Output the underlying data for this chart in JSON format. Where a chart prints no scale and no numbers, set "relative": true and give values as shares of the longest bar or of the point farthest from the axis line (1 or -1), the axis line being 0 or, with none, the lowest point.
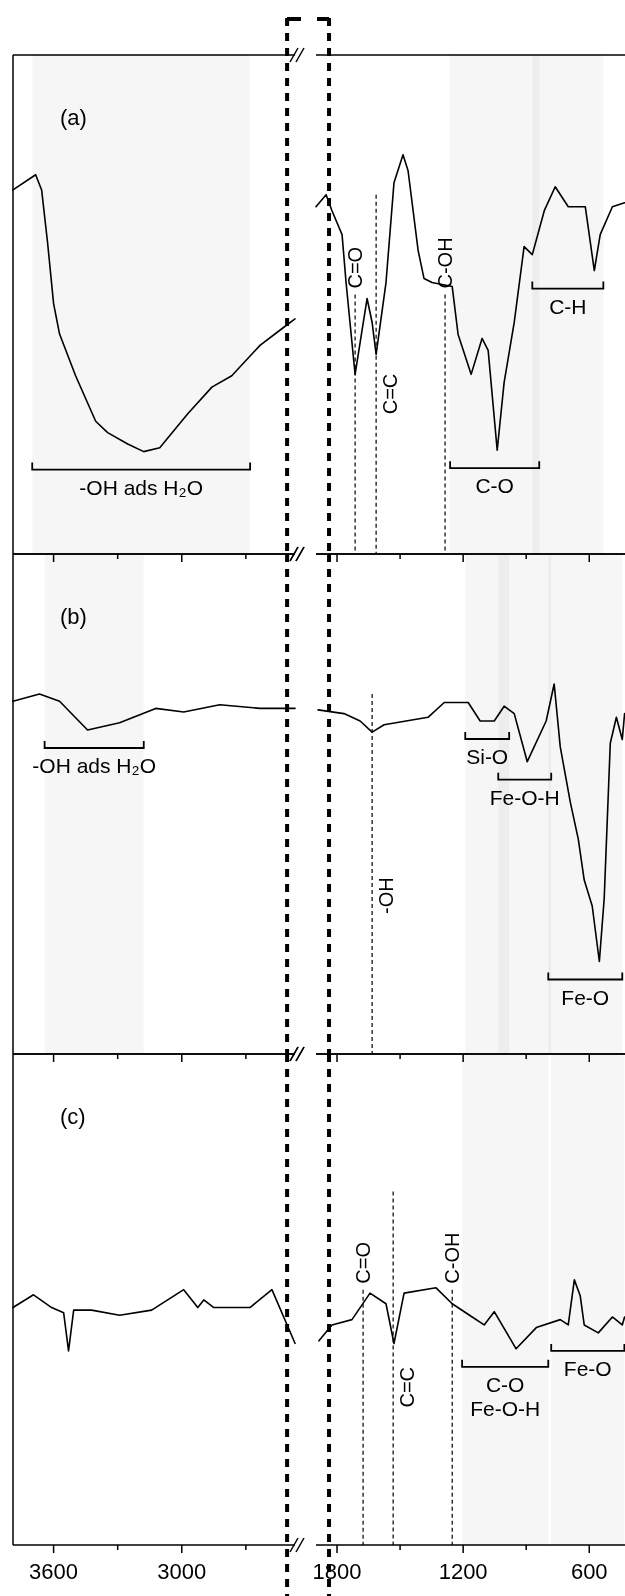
{
  "chart_data": [
    {
      "type": "line",
      "relative": true,
      "tick_labels": false,
      "annotations": [
        "(a)"
      ],
      "x": [
        3790,
        3684,
        3656,
        3628,
        3600,
        3572,
        3497,
        3403,
        3347,
        3253,
        3178,
        3103,
        2972,
        2859,
        2766,
        2634,
        2541,
        2470
      ],
      "series": [
        {
          "color": "#000000",
          "values": [
            0.96,
            1.0,
            0.96,
            0.82,
            0.66,
            0.58,
            0.47,
            0.35,
            0.32,
            0.29,
            0.27,
            0.28,
            0.37,
            0.44,
            0.47,
            0.55,
            0.59,
            0.62
          ]
        }
      ],
      "xlim": [
        3790,
        2470
      ],
      "xticks": [
        3600,
        {
          "value": 3300,
          "label": null
        },
        3000,
        {
          "value": 2700,
          "label": null
        }
      ],
      "ref_lines": [
        {
          "axis": "x",
          "value": 2507,
          "line_style": "dashed",
          "color": "#000000"
        }
      ],
      "bands": [
        {
          "axis": "x",
          "from": 3700,
          "to": 2680,
          "label": "-OH ads H₂O"
        }
      ]
    },
    {
      "type": "line",
      "relative": true,
      "tick_labels": false,
      "x": [
        1900,
        1852,
        1824,
        1776,
        1757,
        1714,
        1681,
        1657,
        1633,
        1614,
        1567,
        1529,
        1486,
        1462,
        1414,
        1386,
        1348,
        1252,
        1224,
        1162,
        1110,
        1081,
        1038,
        1005,
        957,
        910,
        871,
        814,
        762,
        700,
        619,
        576,
        548,
        490,
        432
      ],
      "series": [
        {
          "color": "#000000",
          "values": [
            0.87,
            0.9,
            0.86,
            0.8,
            0.68,
            0.45,
            0.56,
            0.64,
            0.58,
            0.5,
            0.68,
            0.93,
            1.0,
            0.96,
            0.76,
            0.69,
            0.68,
            0.67,
            0.55,
            0.45,
            0.54,
            0.51,
            0.26,
            0.43,
            0.58,
            0.77,
            0.75,
            0.86,
            0.92,
            0.87,
            0.87,
            0.71,
            0.8,
            0.87,
            0.88
          ]
        }
      ],
      "xlim": [
        1900,
        430
      ],
      "xticks": [
        1800,
        {
          "value": 1500,
          "label": null
        },
        1200,
        {
          "value": 900,
          "label": null
        },
        600
      ],
      "ref_lines": [
        {
          "axis": "x",
          "value": 1838,
          "line_style": "dashed",
          "color": "#000000"
        },
        {
          "axis": "x",
          "value": 1714,
          "label": "C=O",
          "line_style": "dashed"
        },
        {
          "axis": "x",
          "value": 1614,
          "label": "C=C",
          "line_style": "dashed"
        },
        {
          "axis": "x",
          "value": 1286,
          "label": "C-OH",
          "line_style": "dashed"
        }
      ],
      "bands": [
        {
          "axis": "x",
          "from": 1262,
          "to": 838,
          "label": "C-O"
        },
        {
          "axis": "x",
          "from": 871,
          "to": 533,
          "label": "C-H"
        }
      ]
    },
    {
      "type": "line",
      "relative": true,
      "tick_labels": false,
      "annotations": [
        "(b)"
      ],
      "x": [
        3790,
        3666,
        3572,
        3441,
        3291,
        3122,
        2991,
        2822,
        2634,
        2470
      ],
      "series": [
        {
          "color": "#000000",
          "values": [
            0.98,
            1.0,
            0.98,
            0.9,
            0.92,
            0.96,
            0.95,
            0.97,
            0.96,
            0.96
          ]
        }
      ],
      "xlim": [
        3790,
        2470
      ],
      "xticks": [
        3600,
        {
          "value": 3300,
          "label": null
        },
        3000,
        {
          "value": 2700,
          "label": null
        }
      ],
      "ref_lines": [
        {
          "axis": "x",
          "value": 2507,
          "line_style": "dashed",
          "color": "#000000"
        }
      ],
      "bands": [
        {
          "axis": "x",
          "from": 3642,
          "to": 3178,
          "label": "-OH ads H₂O"
        }
      ]
    },
    {
      "type": "line",
      "relative": true,
      "tick_labels": false,
      "x": [
        1890,
        1767,
        1690,
        1633,
        1576,
        1367,
        1290,
        1176,
        1119,
        1052,
        1005,
        957,
        895,
        805,
        767,
        738,
        690,
        652,
        624,
        586,
        552,
        529,
        500,
        471,
        443,
        432
      ],
      "series": [
        {
          "color": "#000000",
          "values": [
            0.93,
            0.92,
            0.9,
            0.87,
            0.89,
            0.91,
            0.95,
            0.95,
            0.9,
            0.9,
            0.94,
            0.92,
            0.79,
            0.9,
            1.0,
            0.83,
            0.68,
            0.58,
            0.47,
            0.4,
            0.25,
            0.42,
            0.84,
            0.91,
            0.85,
            0.92
          ]
        }
      ],
      "xlim": [
        1900,
        430
      ],
      "xticks": [
        1800,
        {
          "value": 1500,
          "label": null
        },
        1200,
        {
          "value": 900,
          "label": null
        },
        600
      ],
      "ref_lines": [
        {
          "axis": "x",
          "value": 1838,
          "line_style": "dashed",
          "color": "#000000"
        },
        {
          "axis": "x",
          "value": 1633,
          "label": "-OH",
          "line_style": "dashed"
        }
      ],
      "bands": [
        {
          "axis": "x",
          "from": 1190,
          "to": 981,
          "label": "Si-O"
        },
        {
          "axis": "x",
          "from": 1033,
          "to": 781,
          "label": "Fe-O-H"
        },
        {
          "axis": "x",
          "from": 795,
          "to": 443,
          "label": "Fe-O"
        }
      ]
    },
    {
      "type": "line",
      "relative": true,
      "tick_labels": "x",
      "annotations": [
        "(c)"
      ],
      "x": [
        3790,
        3694,
        3609,
        3553,
        3530,
        3506,
        3422,
        3291,
        3141,
        2991,
        2925,
        2897,
        2850,
        2681,
        2578,
        2470
      ],
      "series": [
        {
          "color": "#000000",
          "values": [
            0.93,
            0.98,
            0.93,
            0.91,
            0.76,
            0.92,
            0.92,
            0.9,
            0.92,
            1.0,
            0.93,
            0.96,
            0.93,
            0.93,
            1.0,
            0.79
          ]
        }
      ],
      "xlim": [
        3790,
        2470
      ],
      "xticks": [
        3600,
        {
          "value": 3300,
          "label": null
        },
        3000,
        {
          "value": 2700,
          "label": null
        }
      ],
      "ref_lines": [
        {
          "axis": "x",
          "value": 2507,
          "line_style": "dashed",
          "color": "#000000"
        }
      ]
    },
    {
      "type": "line",
      "relative": true,
      "tick_labels": "x",
      "x": [
        1886,
        1824,
        1729,
        1643,
        1567,
        1529,
        1481,
        1329,
        1252,
        1157,
        1100,
        1052,
        948,
        852,
        738,
        700,
        671,
        643,
        624,
        557,
        490,
        443,
        432
      ],
      "series": [
        {
          "color": "#000000",
          "values": [
            0.77,
            0.83,
            0.85,
            0.95,
            0.91,
            0.76,
            0.95,
            0.97,
            0.91,
            0.86,
            0.83,
            0.88,
            0.74,
            0.82,
            0.85,
            0.83,
            1.0,
            0.94,
            0.83,
            0.8,
            0.86,
            0.83,
            0.86
          ]
        }
      ],
      "xlim": [
        1900,
        430
      ],
      "xticks": [
        1800,
        {
          "value": 1500,
          "label": null
        },
        1200,
        {
          "value": 900,
          "label": null
        },
        600
      ],
      "ref_lines": [
        {
          "axis": "x",
          "value": 1838,
          "line_style": "dashed",
          "color": "#000000"
        },
        {
          "axis": "x",
          "value": 1676,
          "label": "C=O",
          "line_style": "dashed"
        },
        {
          "axis": "x",
          "value": 1533,
          "label": "C=C",
          "line_style": "dashed"
        },
        {
          "axis": "x",
          "value": 1252,
          "label": "C-OH",
          "line_style": "dashed"
        }
      ],
      "bands": [
        {
          "axis": "x",
          "from": 1205,
          "to": 795,
          "label": "C-O\nFe-O-H"
        },
        {
          "axis": "x",
          "from": 781,
          "to": 433,
          "label": "Fe-O"
        }
      ]
    }
  ]
}
